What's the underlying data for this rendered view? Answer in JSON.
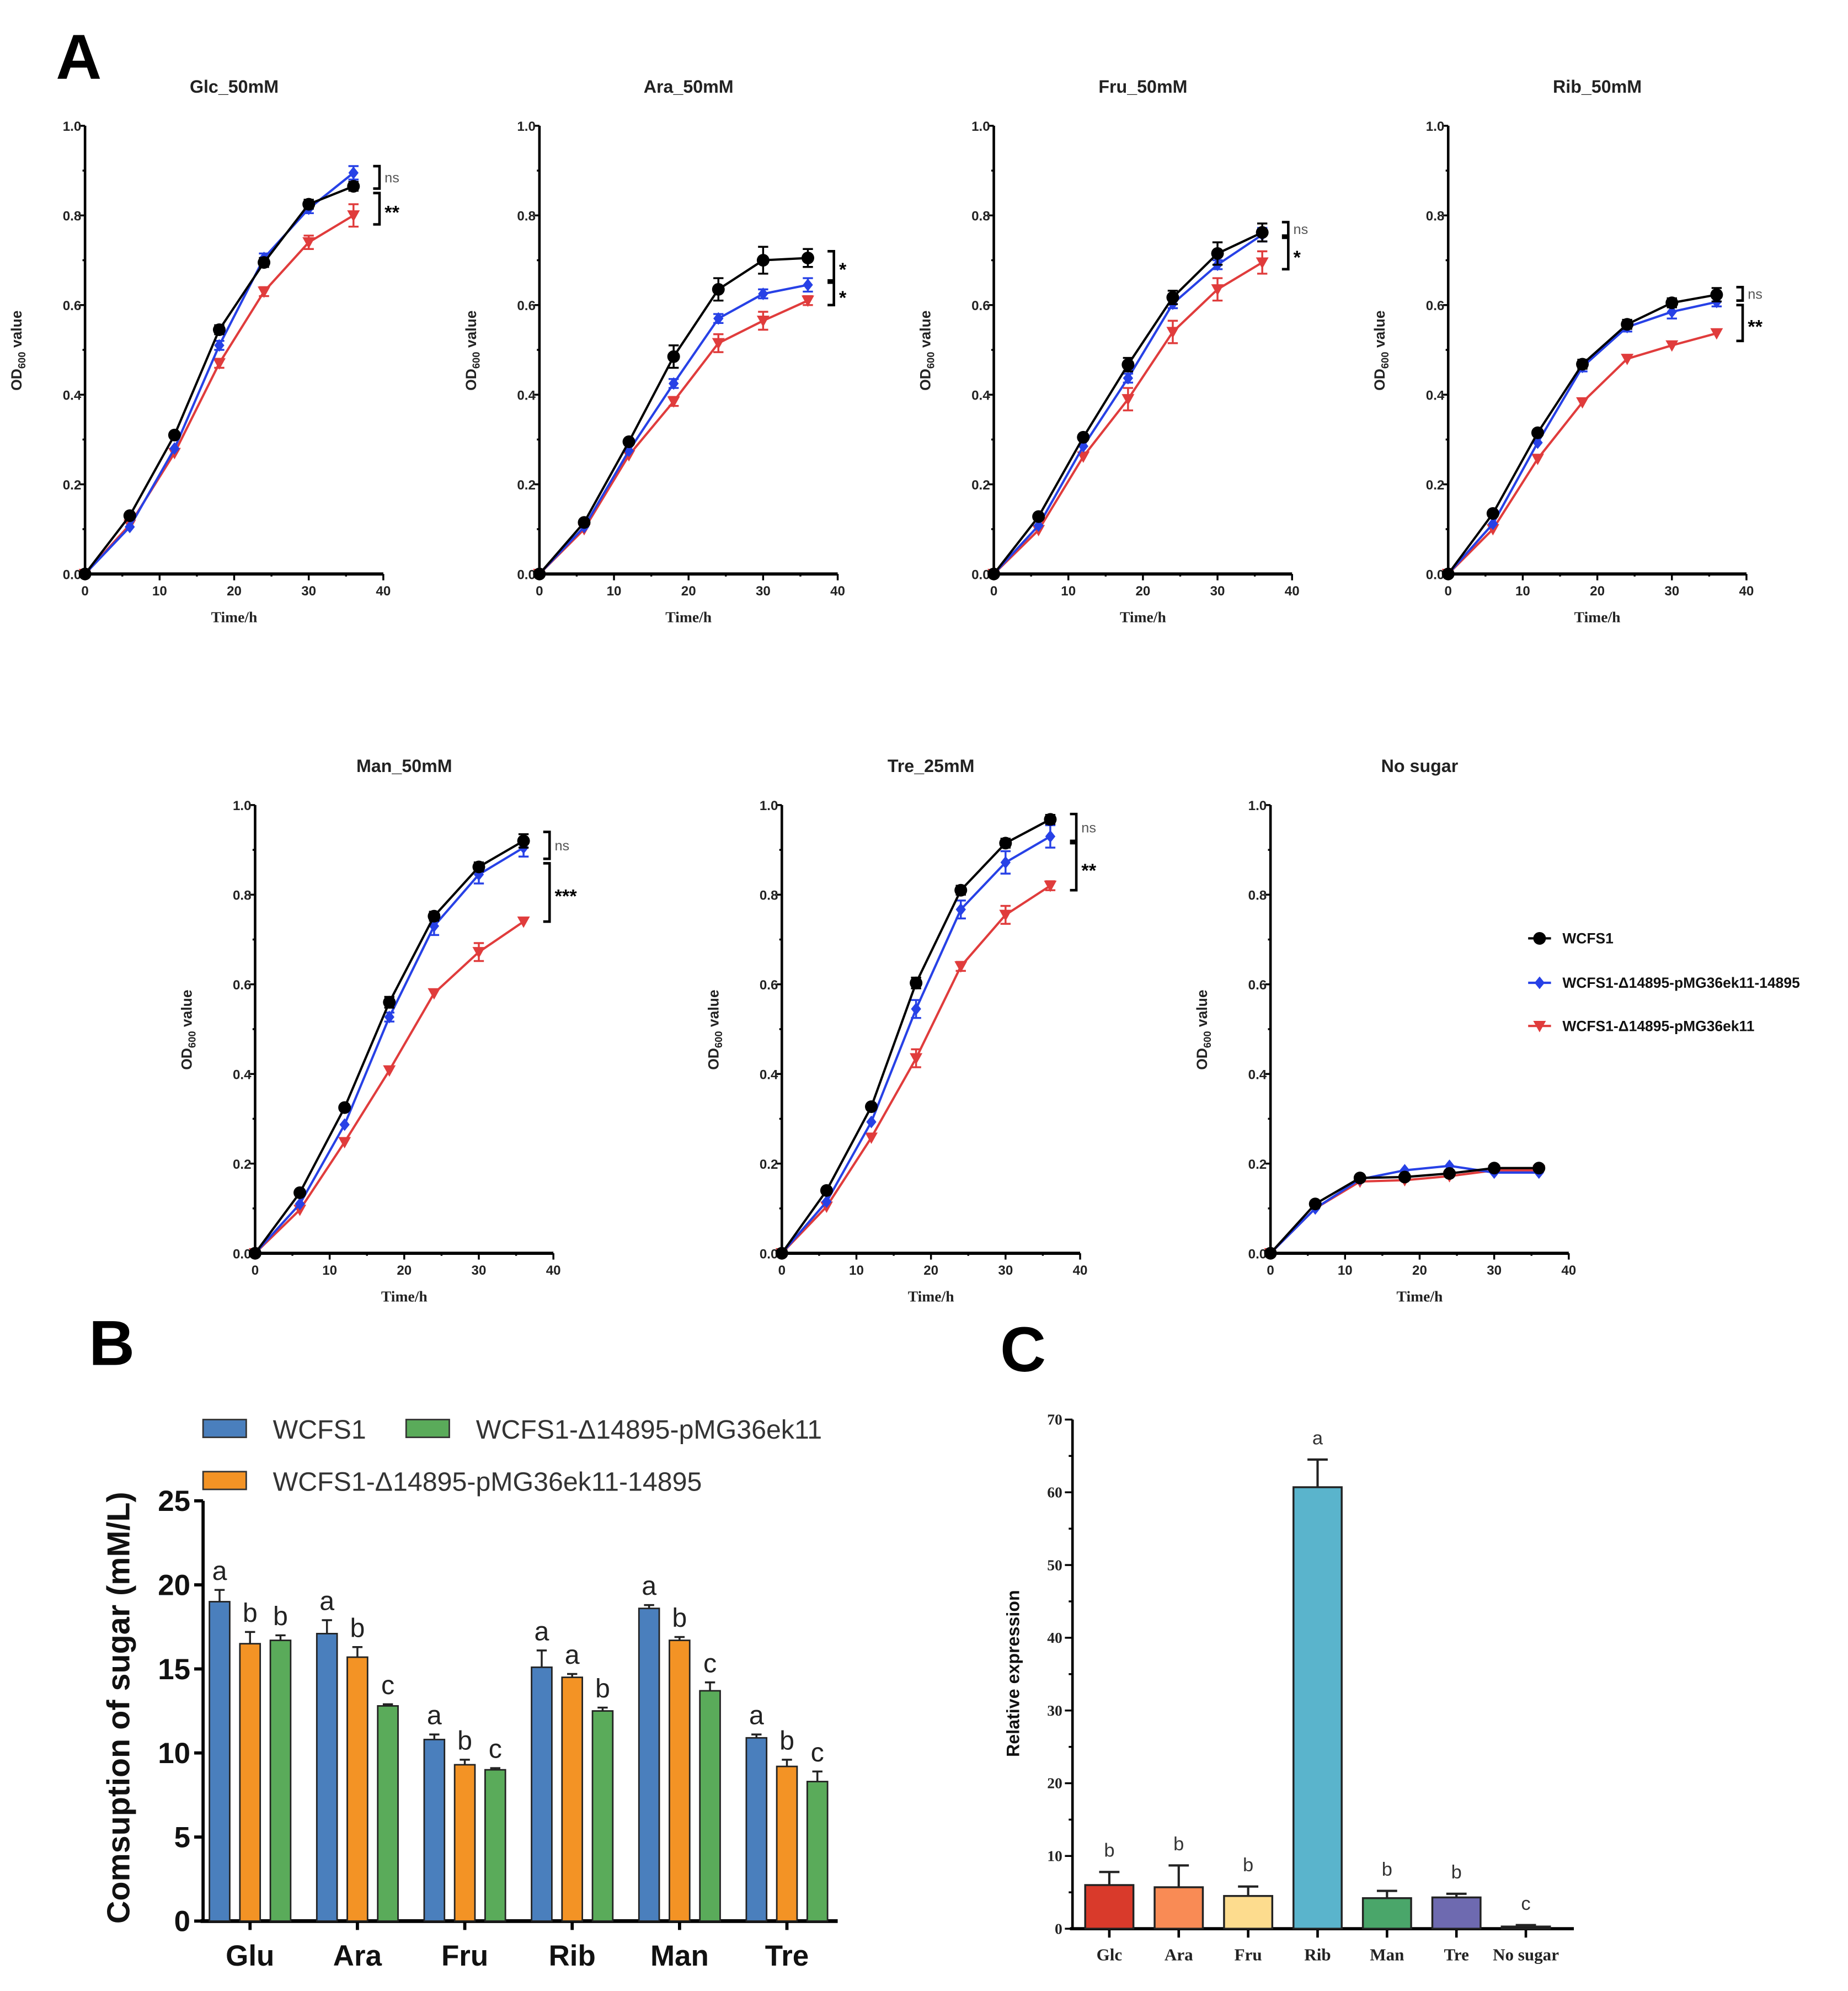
{
  "panels": {
    "a": "A",
    "b": "B",
    "c": "C"
  },
  "legend_a": [
    "WCFS1",
    "WCFS1-Δ14895-pMG36ek11-14895",
    "WCFS1-Δ14895-pMG36ek11"
  ],
  "colors": {
    "wcfs1": "#000000",
    "complement": "#2741e6",
    "vector": "#e03c3c",
    "bar_b": [
      "#4a7fbd",
      "#f39325",
      "#5aab5a"
    ],
    "bar_c": [
      "#d93a2b",
      "#f98b55",
      "#fddc8e",
      "#5ab4cc",
      "#4aa66a",
      "#6e6ab0",
      "#111111"
    ]
  },
  "chart_data": [
    {
      "type": "line",
      "title": "Glc_50mM",
      "xlabel": "Time/h",
      "ylabel_parts": [
        "OD",
        "600",
        " value"
      ],
      "xlim": [
        0,
        40
      ],
      "ylim": [
        0,
        1.0
      ],
      "xticks": [
        "0",
        "10",
        "20",
        "30",
        "40"
      ],
      "yticks": [
        "0.0",
        "0.2",
        "0.4",
        "0.6",
        "0.8",
        "1.0"
      ],
      "x": [
        0,
        6,
        12,
        18,
        24,
        30,
        36
      ],
      "series": [
        {
          "name": "WCFS1",
          "values": [
            0,
            0.13,
            0.31,
            0.545,
            0.695,
            0.825,
            0.865
          ],
          "err": [
            0,
            0.005,
            0.005,
            0.01,
            0.01,
            0.01,
            0.01
          ]
        },
        {
          "name": "WCFS1-Δ14895-pMG36ek11-14895",
          "values": [
            0,
            0.105,
            0.28,
            0.51,
            0.705,
            0.815,
            0.895
          ],
          "err": [
            0,
            0.005,
            0.005,
            0.01,
            0.01,
            0.01,
            0.015
          ]
        },
        {
          "name": "WCFS1-Δ14895-pMG36ek11",
          "values": [
            0,
            0.11,
            0.27,
            0.47,
            0.63,
            0.74,
            0.8
          ],
          "err": [
            0,
            0.005,
            0.005,
            0.01,
            0.01,
            0.015,
            0.025
          ]
        }
      ],
      "significance": [
        {
          "label": "ns",
          "range": [
            0.86,
            0.91
          ]
        },
        {
          "label": "**",
          "range": [
            0.78,
            0.85
          ]
        }
      ]
    },
    {
      "type": "line",
      "title": "Ara_50mM",
      "xlabel": "Time/h",
      "ylabel_parts": [
        "OD",
        "600",
        " value"
      ],
      "xlim": [
        0,
        40
      ],
      "ylim": [
        0,
        1.0
      ],
      "xticks": [
        "0",
        "10",
        "20",
        "30",
        "40"
      ],
      "yticks": [
        "0.0",
        "0.2",
        "0.4",
        "0.6",
        "0.8",
        "1.0"
      ],
      "x": [
        0,
        6,
        12,
        18,
        24,
        30,
        36
      ],
      "series": [
        {
          "name": "WCFS1",
          "values": [
            0,
            0.115,
            0.295,
            0.485,
            0.635,
            0.7,
            0.705
          ],
          "err": [
            0,
            0.005,
            0.005,
            0.025,
            0.025,
            0.03,
            0.02
          ]
        },
        {
          "name": "WCFS1-Δ14895-pMG36ek11-14895",
          "values": [
            0,
            0.105,
            0.275,
            0.425,
            0.57,
            0.625,
            0.645
          ],
          "err": [
            0,
            0.005,
            0.005,
            0.01,
            0.01,
            0.01,
            0.015
          ]
        },
        {
          "name": "WCFS1-Δ14895-pMG36ek11",
          "values": [
            0,
            0.1,
            0.265,
            0.385,
            0.515,
            0.565,
            0.61
          ],
          "err": [
            0,
            0.005,
            0.005,
            0.01,
            0.02,
            0.02,
            0.01
          ]
        }
      ],
      "significance": [
        {
          "label": "*",
          "range": [
            0.655,
            0.72
          ]
        },
        {
          "label": "*",
          "range": [
            0.6,
            0.65
          ]
        }
      ]
    },
    {
      "type": "line",
      "title": "Fru_50mM",
      "xlabel": "Time/h",
      "ylabel_parts": [
        "OD",
        "600",
        " value"
      ],
      "xlim": [
        0,
        40
      ],
      "ylim": [
        0,
        1.0
      ],
      "xticks": [
        "0",
        "10",
        "20",
        "30",
        "40"
      ],
      "yticks": [
        "0.0",
        "0.2",
        "0.4",
        "0.6",
        "0.8",
        "1.0"
      ],
      "x": [
        0,
        6,
        12,
        18,
        24,
        30,
        36
      ],
      "series": [
        {
          "name": "WCFS1",
          "values": [
            0,
            0.128,
            0.305,
            0.467,
            0.617,
            0.715,
            0.762
          ],
          "err": [
            0,
            0.005,
            0.005,
            0.015,
            0.015,
            0.025,
            0.02
          ]
        },
        {
          "name": "WCFS1-Δ14895-pMG36ek11-14895",
          "values": [
            0,
            0.108,
            0.285,
            0.437,
            0.603,
            0.69,
            0.757
          ],
          "err": [
            0,
            0.005,
            0.005,
            0.01,
            0.01,
            0.01,
            0.015
          ]
        },
        {
          "name": "WCFS1-Δ14895-pMG36ek11",
          "values": [
            0,
            0.098,
            0.262,
            0.39,
            0.54,
            0.635,
            0.695
          ],
          "err": [
            0,
            0.005,
            0.005,
            0.025,
            0.025,
            0.025,
            0.025
          ]
        }
      ],
      "significance": [
        {
          "label": "ns",
          "range": [
            0.755,
            0.785
          ]
        },
        {
          "label": "*",
          "range": [
            0.68,
            0.75
          ]
        }
      ]
    },
    {
      "type": "line",
      "title": "Rib_50mM",
      "xlabel": "Time/h",
      "ylabel_parts": [
        "OD",
        "600",
        " value"
      ],
      "xlim": [
        0,
        40
      ],
      "ylim": [
        0,
        1.0
      ],
      "xticks": [
        "0",
        "10",
        "20",
        "30",
        "40"
      ],
      "yticks": [
        "0.0",
        "0.2",
        "0.4",
        "0.6",
        "0.8",
        "1.0"
      ],
      "x": [
        0,
        6,
        12,
        18,
        24,
        30,
        36
      ],
      "series": [
        {
          "name": "WCFS1",
          "values": [
            0,
            0.135,
            0.315,
            0.468,
            0.557,
            0.605,
            0.623
          ],
          "err": [
            0,
            0.005,
            0.005,
            0.01,
            0.01,
            0.01,
            0.015
          ]
        },
        {
          "name": "WCFS1-Δ14895-pMG36ek11-14895",
          "values": [
            0,
            0.112,
            0.293,
            0.462,
            0.551,
            0.585,
            0.607
          ],
          "err": [
            0,
            0.005,
            0.005,
            0.01,
            0.01,
            0.015,
            0.01
          ]
        },
        {
          "name": "WCFS1-Δ14895-pMG36ek11",
          "values": [
            0,
            0.1,
            0.257,
            0.383,
            0.48,
            0.51,
            0.537
          ],
          "err": [
            0,
            0.005,
            0.005,
            0.005,
            0.005,
            0.005,
            0.005
          ]
        }
      ],
      "significance": [
        {
          "label": "ns",
          "range": [
            0.61,
            0.64
          ]
        },
        {
          "label": "**",
          "range": [
            0.52,
            0.6
          ]
        }
      ]
    },
    {
      "type": "line",
      "title": "Man_50mM",
      "xlabel": "Time/h",
      "ylabel_parts": [
        "OD",
        "600",
        " value"
      ],
      "xlim": [
        0,
        40
      ],
      "ylim": [
        0,
        1.0
      ],
      "xticks": [
        "0",
        "10",
        "20",
        "30",
        "40"
      ],
      "yticks": [
        "0.0",
        "0.2",
        "0.4",
        "0.6",
        "0.8",
        "1.0"
      ],
      "x": [
        0,
        6,
        12,
        18,
        24,
        30,
        36
      ],
      "series": [
        {
          "name": "WCFS1",
          "values": [
            0,
            0.135,
            0.325,
            0.56,
            0.752,
            0.862,
            0.92
          ],
          "err": [
            0,
            0.005,
            0.005,
            0.012,
            0.01,
            0.01,
            0.015
          ]
        },
        {
          "name": "WCFS1-Δ14895-pMG36ek11-14895",
          "values": [
            0,
            0.11,
            0.287,
            0.527,
            0.73,
            0.845,
            0.905
          ],
          "err": [
            0,
            0.005,
            0.005,
            0.01,
            0.02,
            0.02,
            0.02
          ]
        },
        {
          "name": "WCFS1-Δ14895-pMG36ek11",
          "values": [
            0,
            0.097,
            0.248,
            0.408,
            0.58,
            0.672,
            0.74
          ],
          "err": [
            0,
            0.005,
            0.005,
            0.005,
            0.005,
            0.02,
            0.005
          ]
        }
      ],
      "significance": [
        {
          "label": "ns",
          "range": [
            0.88,
            0.94
          ]
        },
        {
          "label": "***",
          "range": [
            0.74,
            0.87
          ]
        }
      ]
    },
    {
      "type": "line",
      "title": "Tre_25mM",
      "xlabel": "Time/h",
      "ylabel_parts": [
        "OD",
        "600",
        " value"
      ],
      "xlim": [
        0,
        40
      ],
      "ylim": [
        0,
        1.0
      ],
      "xticks": [
        "0",
        "10",
        "20",
        "30",
        "40"
      ],
      "yticks": [
        "0.0",
        "0.2",
        "0.4",
        "0.6",
        "0.8",
        "1.0"
      ],
      "x": [
        0,
        6,
        12,
        18,
        24,
        30,
        36
      ],
      "series": [
        {
          "name": "WCFS1",
          "values": [
            0,
            0.14,
            0.327,
            0.603,
            0.81,
            0.915,
            0.968
          ],
          "err": [
            0,
            0.005,
            0.005,
            0.012,
            0.01,
            0.01,
            0.01
          ]
        },
        {
          "name": "WCFS1-Δ14895-pMG36ek11-14895",
          "values": [
            0,
            0.115,
            0.293,
            0.545,
            0.767,
            0.872,
            0.93
          ],
          "err": [
            0,
            0.005,
            0.005,
            0.02,
            0.02,
            0.025,
            0.025
          ]
        },
        {
          "name": "WCFS1-Δ14895-pMG36ek11",
          "values": [
            0,
            0.104,
            0.258,
            0.435,
            0.64,
            0.755,
            0.82
          ],
          "err": [
            0,
            0.005,
            0.005,
            0.02,
            0.01,
            0.02,
            0.01
          ]
        }
      ],
      "significance": [
        {
          "label": "ns",
          "range": [
            0.92,
            0.98
          ]
        },
        {
          "label": "**",
          "range": [
            0.81,
            0.915
          ]
        }
      ]
    },
    {
      "type": "line",
      "title": "No sugar",
      "xlabel": "Time/h",
      "ylabel_parts": [
        "OD",
        "600",
        " value"
      ],
      "xlim": [
        0,
        40
      ],
      "ylim": [
        0,
        1.0
      ],
      "xticks": [
        "0",
        "10",
        "20",
        "30",
        "40"
      ],
      "yticks": [
        "0.0",
        "0.2",
        "0.4",
        "0.6",
        "0.8",
        "1.0"
      ],
      "x": [
        0,
        6,
        12,
        18,
        24,
        30,
        36
      ],
      "series": [
        {
          "name": "WCFS1",
          "values": [
            0,
            0.11,
            0.168,
            0.17,
            0.178,
            0.19,
            0.19
          ],
          "err": [
            0,
            0.005,
            0.005,
            0.005,
            0.005,
            0.005,
            0.005
          ]
        },
        {
          "name": "WCFS1-Δ14895-pMG36ek11-14895",
          "values": [
            0,
            0.1,
            0.165,
            0.185,
            0.195,
            0.18,
            0.18
          ],
          "err": [
            0,
            0.005,
            0.005,
            0.005,
            0.005,
            0.005,
            0.005
          ]
        },
        {
          "name": "WCFS1-Δ14895-pMG36ek11",
          "values": [
            0,
            0.1,
            0.16,
            0.163,
            0.172,
            0.185,
            0.185
          ],
          "err": [
            0,
            0.005,
            0.005,
            0.005,
            0.005,
            0.005,
            0.005
          ]
        }
      ],
      "significance": []
    },
    {
      "type": "bar",
      "ylabel": "Comsuption of sugar (mM/L)",
      "ylim": [
        0,
        25
      ],
      "yticks": [
        "0",
        "5",
        "10",
        "15",
        "20",
        "25"
      ],
      "categories": [
        "Glu",
        "Ara",
        "Fru",
        "Rib",
        "Man",
        "Tre"
      ],
      "legend_position": "top",
      "series": [
        {
          "name": "WCFS1",
          "values": [
            19.0,
            17.1,
            10.8,
            15.1,
            18.6,
            10.9
          ],
          "err": [
            0.7,
            0.8,
            0.3,
            1.0,
            0.2,
            0.2
          ],
          "letters": [
            "a",
            "a",
            "a",
            "a",
            "a",
            "a"
          ]
        },
        {
          "name": "WCFS1-Δ14895-pMG36ek11-14895",
          "values": [
            16.5,
            15.7,
            9.3,
            14.5,
            16.7,
            9.2
          ],
          "err": [
            0.7,
            0.6,
            0.3,
            0.2,
            0.2,
            0.4
          ],
          "letters": [
            "b",
            "b",
            "b",
            "a",
            "b",
            "b"
          ]
        },
        {
          "name": "WCFS1-Δ14895-pMG36ek11",
          "values": [
            16.7,
            12.8,
            9.0,
            12.5,
            13.7,
            8.3
          ],
          "err": [
            0.3,
            0.1,
            0.1,
            0.2,
            0.5,
            0.6
          ],
          "letters": [
            "b",
            "c",
            "c",
            "b",
            "c",
            "c"
          ]
        }
      ]
    },
    {
      "type": "bar",
      "ylabel": "Relative expression",
      "ylim": [
        0,
        70
      ],
      "yticks": [
        "0",
        "10",
        "20",
        "30",
        "40",
        "50",
        "60",
        "70"
      ],
      "categories": [
        "Glc",
        "Ara",
        "Fru",
        "Rib",
        "Man",
        "Tre",
        "No sugar"
      ],
      "values": [
        6.0,
        5.7,
        4.5,
        60.7,
        4.2,
        4.3,
        0.3
      ],
      "err": [
        1.8,
        3.0,
        1.3,
        3.8,
        1.0,
        0.5,
        0.2
      ],
      "letters": [
        "b",
        "b",
        "b",
        "a",
        "b",
        "b",
        "c"
      ]
    }
  ]
}
